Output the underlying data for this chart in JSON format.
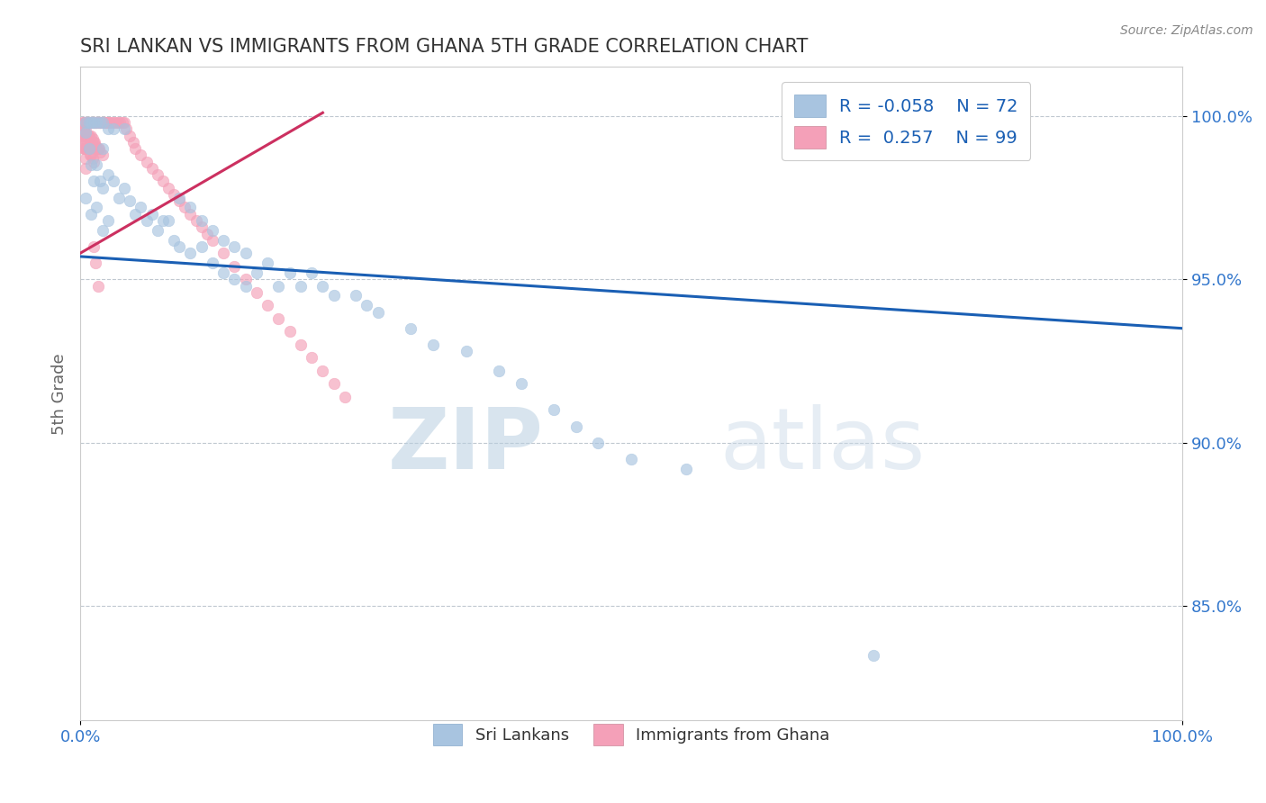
{
  "title": "SRI LANKAN VS IMMIGRANTS FROM GHANA 5TH GRADE CORRELATION CHART",
  "source_text": "Source: ZipAtlas.com",
  "ylabel": "5th Grade",
  "xlim": [
    0.0,
    1.0
  ],
  "ylim": [
    0.815,
    1.015
  ],
  "yticks": [
    0.85,
    0.9,
    0.95,
    1.0
  ],
  "ytick_labels": [
    "85.0%",
    "90.0%",
    "95.0%",
    "100.0%"
  ],
  "xticks": [
    0.0,
    1.0
  ],
  "xtick_labels": [
    "0.0%",
    "100.0%"
  ],
  "legend_r1": "R = -0.058",
  "legend_n1": "N = 72",
  "legend_r2": "R =  0.257",
  "legend_n2": "N = 99",
  "blue_color": "#a8c4e0",
  "pink_color": "#f4a0b8",
  "blue_line_color": "#1a5fb4",
  "pink_line_color": "#cc3060",
  "marker_size": 9,
  "blue_scatter_x": [
    0.005,
    0.005,
    0.005,
    0.008,
    0.008,
    0.01,
    0.01,
    0.01,
    0.012,
    0.012,
    0.015,
    0.015,
    0.015,
    0.018,
    0.018,
    0.02,
    0.02,
    0.02,
    0.02,
    0.025,
    0.025,
    0.025,
    0.03,
    0.03,
    0.035,
    0.04,
    0.04,
    0.045,
    0.05,
    0.055,
    0.06,
    0.065,
    0.07,
    0.075,
    0.08,
    0.085,
    0.09,
    0.09,
    0.1,
    0.1,
    0.11,
    0.11,
    0.12,
    0.12,
    0.13,
    0.13,
    0.14,
    0.14,
    0.15,
    0.15,
    0.16,
    0.17,
    0.18,
    0.19,
    0.2,
    0.21,
    0.22,
    0.23,
    0.25,
    0.26,
    0.27,
    0.3,
    0.32,
    0.35,
    0.38,
    0.4,
    0.43,
    0.45,
    0.47,
    0.5,
    0.55,
    0.72
  ],
  "blue_scatter_y": [
    0.998,
    0.995,
    0.975,
    0.998,
    0.99,
    0.998,
    0.985,
    0.97,
    0.998,
    0.98,
    0.998,
    0.985,
    0.972,
    0.998,
    0.98,
    0.998,
    0.99,
    0.978,
    0.965,
    0.996,
    0.982,
    0.968,
    0.996,
    0.98,
    0.975,
    0.996,
    0.978,
    0.974,
    0.97,
    0.972,
    0.968,
    0.97,
    0.965,
    0.968,
    0.968,
    0.962,
    0.975,
    0.96,
    0.972,
    0.958,
    0.968,
    0.96,
    0.965,
    0.955,
    0.962,
    0.952,
    0.96,
    0.95,
    0.958,
    0.948,
    0.952,
    0.955,
    0.948,
    0.952,
    0.948,
    0.952,
    0.948,
    0.945,
    0.945,
    0.942,
    0.94,
    0.935,
    0.93,
    0.928,
    0.922,
    0.918,
    0.91,
    0.905,
    0.9,
    0.895,
    0.892,
    0.835
  ],
  "pink_scatter_x": [
    0.002,
    0.002,
    0.002,
    0.002,
    0.003,
    0.003,
    0.003,
    0.003,
    0.004,
    0.004,
    0.004,
    0.005,
    0.005,
    0.005,
    0.005,
    0.005,
    0.005,
    0.006,
    0.006,
    0.006,
    0.007,
    0.007,
    0.007,
    0.008,
    0.008,
    0.008,
    0.009,
    0.009,
    0.009,
    0.01,
    0.01,
    0.01,
    0.011,
    0.011,
    0.011,
    0.012,
    0.012,
    0.012,
    0.013,
    0.013,
    0.014,
    0.014,
    0.015,
    0.015,
    0.016,
    0.016,
    0.017,
    0.017,
    0.018,
    0.018,
    0.019,
    0.02,
    0.02,
    0.021,
    0.022,
    0.023,
    0.024,
    0.025,
    0.026,
    0.028,
    0.03,
    0.032,
    0.034,
    0.036,
    0.038,
    0.04,
    0.042,
    0.045,
    0.048,
    0.05,
    0.055,
    0.06,
    0.065,
    0.07,
    0.075,
    0.08,
    0.085,
    0.09,
    0.095,
    0.1,
    0.105,
    0.11,
    0.115,
    0.12,
    0.13,
    0.14,
    0.15,
    0.16,
    0.17,
    0.18,
    0.19,
    0.2,
    0.21,
    0.22,
    0.23,
    0.24,
    0.012,
    0.014,
    0.016
  ],
  "pink_scatter_y": [
    0.998,
    0.996,
    0.994,
    0.992,
    0.998,
    0.996,
    0.993,
    0.99,
    0.998,
    0.995,
    0.99,
    0.998,
    0.996,
    0.993,
    0.99,
    0.987,
    0.984,
    0.998,
    0.994,
    0.99,
    0.998,
    0.994,
    0.99,
    0.998,
    0.994,
    0.99,
    0.998,
    0.993,
    0.988,
    0.998,
    0.994,
    0.988,
    0.998,
    0.993,
    0.987,
    0.998,
    0.992,
    0.986,
    0.998,
    0.992,
    0.998,
    0.991,
    0.998,
    0.99,
    0.998,
    0.99,
    0.998,
    0.99,
    0.998,
    0.989,
    0.998,
    0.998,
    0.988,
    0.998,
    0.998,
    0.998,
    0.998,
    0.998,
    0.998,
    0.998,
    0.998,
    0.998,
    0.998,
    0.998,
    0.998,
    0.998,
    0.996,
    0.994,
    0.992,
    0.99,
    0.988,
    0.986,
    0.984,
    0.982,
    0.98,
    0.978,
    0.976,
    0.974,
    0.972,
    0.97,
    0.968,
    0.966,
    0.964,
    0.962,
    0.958,
    0.954,
    0.95,
    0.946,
    0.942,
    0.938,
    0.934,
    0.93,
    0.926,
    0.922,
    0.918,
    0.914,
    0.96,
    0.955,
    0.948
  ],
  "blue_trend_x": [
    0.0,
    1.0
  ],
  "blue_trend_y": [
    0.957,
    0.935
  ],
  "pink_trend_x": [
    0.0,
    0.22
  ],
  "pink_trend_y": [
    0.958,
    1.001
  ],
  "watermark_zip": "ZIP",
  "watermark_atlas": "atlas",
  "background_color": "#ffffff",
  "grid_color": "#c0c8d0",
  "title_color": "#333333",
  "axis_label_color": "#666666",
  "tick_label_color": "#3377cc",
  "legend_label_color": "#1a5fb4"
}
